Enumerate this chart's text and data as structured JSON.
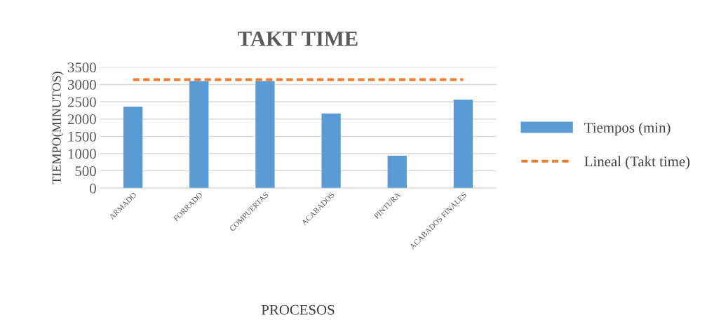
{
  "chart_data": {
    "type": "bar",
    "title": "TAKT TIME",
    "xlabel": "PROCESOS",
    "ylabel": "TIEMPO(MINUTOS)",
    "categories": [
      "ARMADO",
      "FORRADO",
      "COMPUERTAS",
      "ACABADOS",
      "PINTURA",
      "ACABADOS FINALES"
    ],
    "series": [
      {
        "name": "Tiempos (min)",
        "color": "#5b9bd5",
        "values": [
          2360,
          3100,
          3100,
          2160,
          940,
          2560
        ]
      },
      {
        "name": "Lineal (Takt time)",
        "type": "line",
        "line_style": "dashed",
        "color": "#ed7d31",
        "values": [
          3140,
          3140,
          3140,
          3140,
          3140,
          3140
        ]
      }
    ],
    "ylim": [
      0,
      3500
    ],
    "yticks": [
      0,
      500,
      1000,
      1500,
      2000,
      2500,
      3000,
      3500
    ],
    "grid": "y",
    "legend": "right"
  }
}
